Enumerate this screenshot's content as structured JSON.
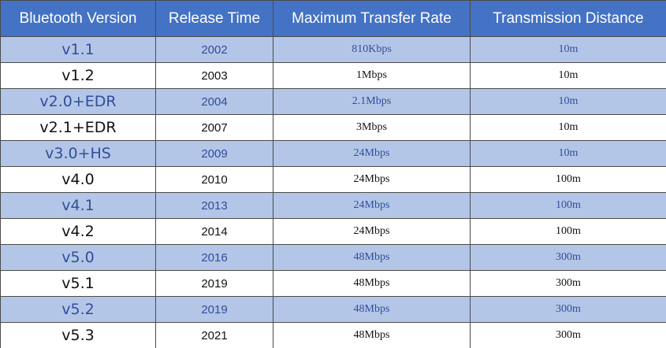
{
  "table": {
    "header": [
      "Bluetooth Version",
      "Release Time",
      "Maximum Transfer Rate",
      "Transmission Distance"
    ],
    "rows": [
      [
        "v1.1",
        "2002",
        "810Kbps",
        "10m"
      ],
      [
        "v1.2",
        "2003",
        "1Mbps",
        "10m"
      ],
      [
        "v2.0+EDR",
        "2004",
        "2.1Mbps",
        "10m"
      ],
      [
        "v2.1+EDR",
        "2007",
        "3Mbps",
        "10m"
      ],
      [
        "v3.0+HS",
        "2009",
        "24Mbps",
        "10m"
      ],
      [
        "v4.0",
        "2010",
        "24Mbps",
        "100m"
      ],
      [
        "v4.1",
        "2013",
        "24Mbps",
        "100m"
      ],
      [
        "v4.2",
        "2014",
        "24Mbps",
        "100m"
      ],
      [
        "v5.0",
        "2016",
        "48Mbps",
        "300m"
      ],
      [
        "v5.1",
        "2019",
        "48Mbps",
        "300m"
      ],
      [
        "v5.2",
        "2019",
        "48Mbps",
        "300m"
      ],
      [
        "v5.3",
        "2021",
        "48Mbps",
        "300m"
      ]
    ]
  }
}
